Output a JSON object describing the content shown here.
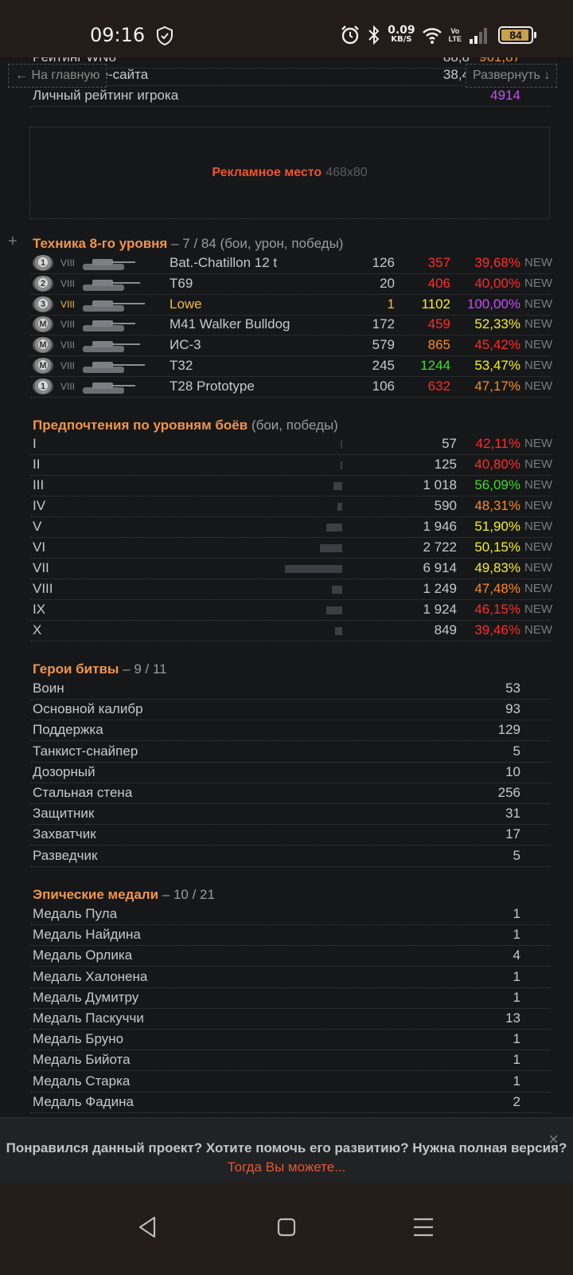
{
  "status": {
    "time": "09:16",
    "net_speed": "0.09",
    "net_unit": "KB/S",
    "volte_top": "Vo",
    "volte_bottom": "LTE",
    "battery": "84"
  },
  "top": {
    "back_button": "← На главную",
    "expand_button": "Развернуть ↓",
    "partial_row": {
      "label": "Рейтинг WN8",
      "value": "88,8",
      "score": "961,87"
    },
    "site_row": {
      "label": "Рейтинг вне-сайта",
      "value": "38,4"
    },
    "personal_row": {
      "label": "Личный рейтинг игрока",
      "score": "4914"
    }
  },
  "ad": {
    "label": "Рекламное место",
    "size": "468x80"
  },
  "vehicles": {
    "title": "Техника 8-го уровня",
    "subtitle": "– 7 / 84 (бои, урон, победы)",
    "rows": [
      {
        "medal": "1",
        "tier": "VIII",
        "name": "Bat.-Chatillon 12 t",
        "battles": "126",
        "damage": "357",
        "winrate": "39,68%",
        "tag": "NEW",
        "dmg_color": "#ff2b2b",
        "wr_color": "#ff2b2b",
        "name_color": "#c8c8c8"
      },
      {
        "medal": "2",
        "tier": "VIII",
        "name": "T69",
        "battles": "20",
        "damage": "406",
        "winrate": "40,00%",
        "tag": "NEW",
        "dmg_color": "#ff2b2b",
        "wr_color": "#ff2b2b",
        "name_color": "#c8c8c8"
      },
      {
        "medal": "3",
        "tier": "VIII",
        "name": "Lowe",
        "battles": "1",
        "damage": "1102",
        "winrate": "100,00%",
        "tag": "NEW",
        "dmg_color": "#f4f01c",
        "wr_color": "#c94bff",
        "name_color": "#f4b940"
      },
      {
        "medal": "M",
        "tier": "VIII",
        "name": "M41 Walker Bulldog",
        "battles": "172",
        "damage": "459",
        "winrate": "52,33%",
        "tag": "NEW",
        "dmg_color": "#ff2b2b",
        "wr_color": "#f4f01c",
        "name_color": "#c8c8c8"
      },
      {
        "medal": "M",
        "tier": "VIII",
        "name": "ИС-3",
        "battles": "579",
        "damage": "865",
        "winrate": "45,42%",
        "tag": "NEW",
        "dmg_color": "#ff8a1f",
        "wr_color": "#ff2b2b",
        "name_color": "#c8c8c8"
      },
      {
        "medal": "M",
        "tier": "VIII",
        "name": "T32",
        "battles": "245",
        "damage": "1244",
        "winrate": "53,47%",
        "tag": "NEW",
        "dmg_color": "#3fdc2a",
        "wr_color": "#f4f01c",
        "name_color": "#c8c8c8"
      },
      {
        "medal": "1",
        "tier": "VIII",
        "name": "T28 Prototype",
        "battles": "106",
        "damage": "632",
        "winrate": "47,17%",
        "tag": "NEW",
        "dmg_color": "#ff2b2b",
        "wr_color": "#ff8a1f",
        "name_color": "#c8c8c8"
      }
    ]
  },
  "levels": {
    "title": "Предпочтения по уровням боёв",
    "subtitle": "(бои, победы)",
    "rows": [
      {
        "level": "I",
        "battles": "57",
        "winrate": "42,11%",
        "tag": "NEW",
        "wr_color": "#ff2b2b",
        "share": 0.008
      },
      {
        "level": "II",
        "battles": "125",
        "winrate": "40,80%",
        "tag": "NEW",
        "wr_color": "#ff2b2b",
        "share": 0.018
      },
      {
        "level": "III",
        "battles": "1 018",
        "winrate": "56,09%",
        "tag": "NEW",
        "wr_color": "#3fdc2a",
        "share": 0.147
      },
      {
        "level": "IV",
        "battles": "590",
        "winrate": "48,31%",
        "tag": "NEW",
        "wr_color": "#ff8a1f",
        "share": 0.085
      },
      {
        "level": "V",
        "battles": "1 946",
        "winrate": "51,90%",
        "tag": "NEW",
        "wr_color": "#f4f01c",
        "share": 0.281
      },
      {
        "level": "VI",
        "battles": "2 722",
        "winrate": "50,15%",
        "tag": "NEW",
        "wr_color": "#f4f01c",
        "share": 0.394
      },
      {
        "level": "VII",
        "battles": "6 914",
        "winrate": "49,83%",
        "tag": "NEW",
        "wr_color": "#f4f01c",
        "share": 1.0
      },
      {
        "level": "VIII",
        "battles": "1 249",
        "winrate": "47,48%",
        "tag": "NEW",
        "wr_color": "#ff8a1f",
        "share": 0.181
      },
      {
        "level": "IX",
        "battles": "1 924",
        "winrate": "46,15%",
        "tag": "NEW",
        "wr_color": "#ff2b2b",
        "share": 0.278
      },
      {
        "level": "X",
        "battles": "849",
        "winrate": "39,46%",
        "tag": "NEW",
        "wr_color": "#ff2b2b",
        "share": 0.123
      }
    ]
  },
  "heroes": {
    "title": "Герои битвы",
    "subtitle": "– 9 / 11",
    "rows": [
      {
        "name": "Воин",
        "value": "53"
      },
      {
        "name": "Основной калибр",
        "value": "93"
      },
      {
        "name": "Поддержка",
        "value": "129"
      },
      {
        "name": "Танкист-снайпер",
        "value": "5"
      },
      {
        "name": "Дозорный",
        "value": "10"
      },
      {
        "name": "Стальная стена",
        "value": "256"
      },
      {
        "name": "Защитник",
        "value": "31"
      },
      {
        "name": "Захватчик",
        "value": "17"
      },
      {
        "name": "Разведчик",
        "value": "5"
      }
    ]
  },
  "epic": {
    "title": "Эпические медали",
    "subtitle": "– 10 / 21",
    "rows": [
      {
        "name": "Медаль Пула",
        "value": "1"
      },
      {
        "name": "Медаль Найдина",
        "value": "1"
      },
      {
        "name": "Медаль Орлика",
        "value": "4"
      },
      {
        "name": "Медаль Халонена",
        "value": "1"
      },
      {
        "name": "Медаль Думитру",
        "value": "1"
      },
      {
        "name": "Медаль Паскуччи",
        "value": "13"
      },
      {
        "name": "Медаль Бруно",
        "value": "1"
      },
      {
        "name": "Медаль Бийота",
        "value": "1"
      },
      {
        "name": "Медаль Старка",
        "value": "1"
      },
      {
        "name": "Медаль Фадина",
        "value": "2"
      }
    ]
  },
  "banner": {
    "text": "Понравился данный проект? Хотите помочь его развитию? Нужна полная версия?",
    "link": "Тогда Вы можете...",
    "close": "×"
  },
  "colors": {
    "accent": "#f0964a",
    "link": "#e8562e",
    "purple": "#c94bff"
  }
}
